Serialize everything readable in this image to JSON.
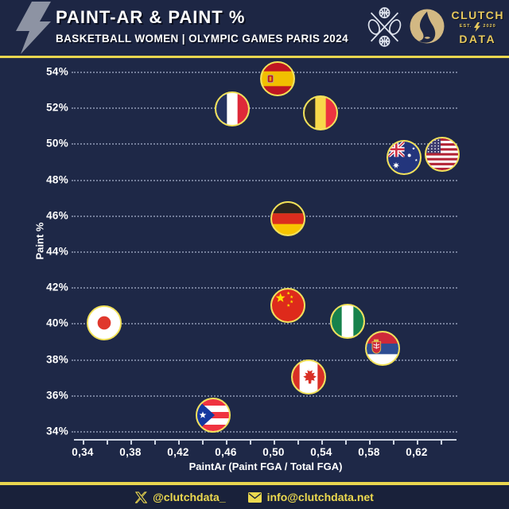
{
  "header": {
    "title": "PAINT-AR & PAINT %",
    "subtitle": "BASKETBALL WOMEN | OLYMPIC GAMES PARIS 2024",
    "brand": {
      "top": "CLUTCH",
      "est": "EST.",
      "year": "2020",
      "bottom": "DATA"
    }
  },
  "footer": {
    "twitter": "@clutchdata_",
    "email": "info@clutchdata.net"
  },
  "colors": {
    "background": "#1e2847",
    "footer_background": "#19213a",
    "accent_yellow": "#e9d64f",
    "flag_ring": "#f1e158",
    "brand_gold": "#e7c95d",
    "text": "#ffffff",
    "grid": "#b9c3dc"
  },
  "chart_data": {
    "type": "scatter",
    "title": "PAINT-AR & PAINT %",
    "subtitle": "BASKETBALL WOMEN | OLYMPIC GAMES PARIS 2024",
    "xlabel": "PaintAr (Paint FGA / Total FGA)",
    "ylabel": "Paint %",
    "xlim": [
      0.327,
      0.654
    ],
    "ylim": [
      33.3,
      54.8
    ],
    "x_ticks_labeled": [
      0.34,
      0.38,
      0.42,
      0.46,
      0.5,
      0.54,
      0.58,
      0.62
    ],
    "x_tick_minor_step": 0.02,
    "x_tick_minor_max": 0.64,
    "x_decimal_separator": ",",
    "y_ticks": [
      54,
      52,
      50,
      48,
      46,
      44,
      42,
      40,
      38,
      36,
      34
    ],
    "y_tick_suffix": "%",
    "grid": "horizontal-dotted",
    "marker": "circular-flag",
    "points": [
      {
        "team": "Spain",
        "flag": "es",
        "x": 0.503,
        "y": 53.6
      },
      {
        "team": "France",
        "flag": "fr",
        "x": 0.465,
        "y": 51.9
      },
      {
        "team": "Belgium",
        "flag": "be",
        "x": 0.539,
        "y": 51.7
      },
      {
        "team": "Australia",
        "flag": "au",
        "x": 0.609,
        "y": 49.2
      },
      {
        "team": "United States",
        "flag": "us",
        "x": 0.641,
        "y": 49.4
      },
      {
        "team": "Germany",
        "flag": "de",
        "x": 0.512,
        "y": 45.8
      },
      {
        "team": "China",
        "flag": "cn",
        "x": 0.512,
        "y": 41.0
      },
      {
        "team": "Japan",
        "flag": "jp",
        "x": 0.358,
        "y": 40.0
      },
      {
        "team": "Nigeria",
        "flag": "ng",
        "x": 0.562,
        "y": 40.1
      },
      {
        "team": "Serbia",
        "flag": "rs",
        "x": 0.591,
        "y": 38.6
      },
      {
        "team": "Canada",
        "flag": "ca",
        "x": 0.529,
        "y": 37.0
      },
      {
        "team": "Puerto Rico",
        "flag": "pr",
        "x": 0.449,
        "y": 34.9
      }
    ]
  }
}
